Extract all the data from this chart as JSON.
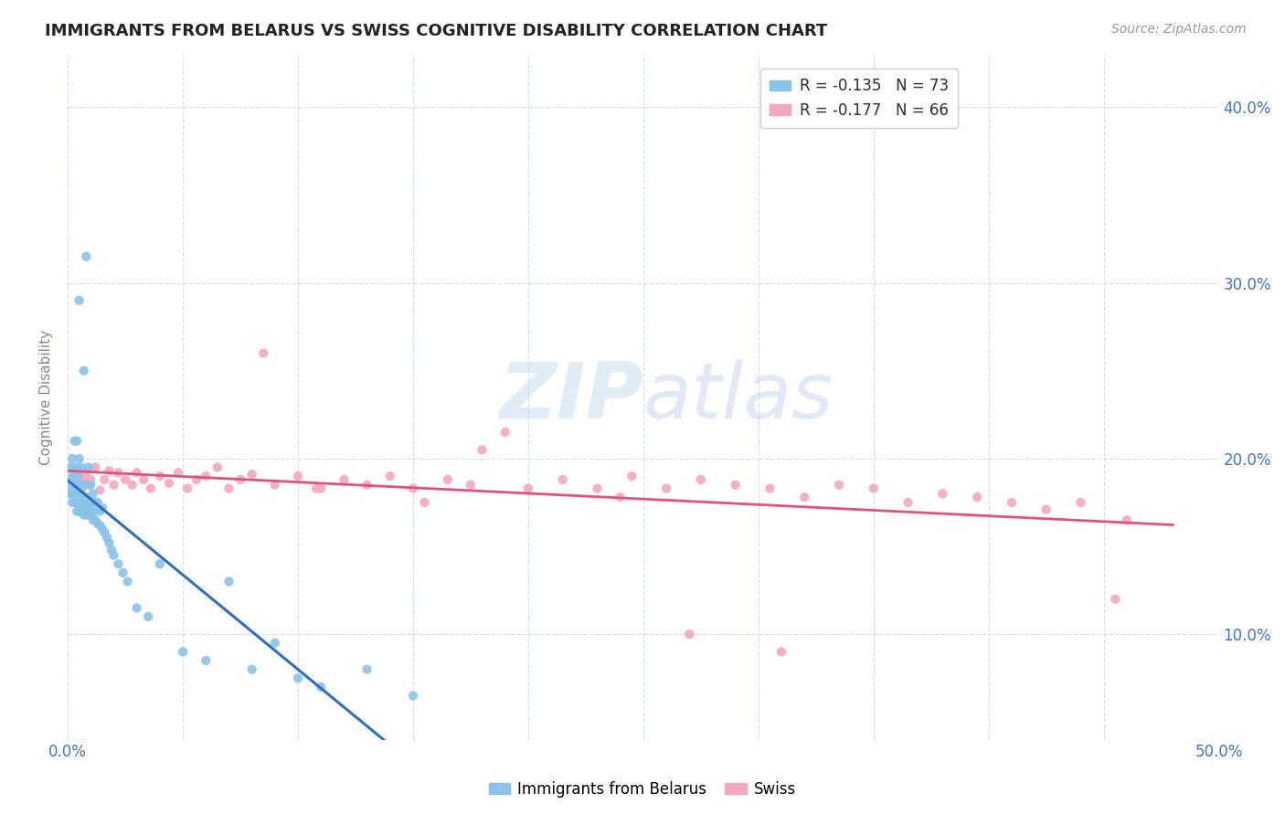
{
  "title": "IMMIGRANTS FROM BELARUS VS SWISS COGNITIVE DISABILITY CORRELATION CHART",
  "source": "Source: ZipAtlas.com",
  "ylabel": "Cognitive Disability",
  "x_min": 0.0,
  "x_max": 0.5,
  "y_min": 0.04,
  "y_max": 0.43,
  "legend_label1": "R = -0.135   N = 73",
  "legend_label2": "R = -0.177   N = 66",
  "legend_bottom_label1": "Immigrants from Belarus",
  "legend_bottom_label2": "Swiss",
  "color_blue": "#89c4e8",
  "color_pink": "#f4a8bc",
  "color_blue_line": "#3070b8",
  "color_pink_line": "#e05080",
  "blue_scatter_x": [
    0.001,
    0.001,
    0.001,
    0.002,
    0.002,
    0.002,
    0.002,
    0.003,
    0.003,
    0.003,
    0.003,
    0.003,
    0.004,
    0.004,
    0.004,
    0.004,
    0.004,
    0.004,
    0.005,
    0.005,
    0.005,
    0.005,
    0.005,
    0.006,
    0.006,
    0.006,
    0.006,
    0.007,
    0.007,
    0.007,
    0.007,
    0.008,
    0.008,
    0.008,
    0.008,
    0.009,
    0.009,
    0.009,
    0.01,
    0.01,
    0.01,
    0.01,
    0.011,
    0.011,
    0.011,
    0.012,
    0.012,
    0.013,
    0.013,
    0.014,
    0.014,
    0.015,
    0.015,
    0.016,
    0.017,
    0.018,
    0.019,
    0.02,
    0.022,
    0.024,
    0.026,
    0.03,
    0.035,
    0.04,
    0.05,
    0.06,
    0.07,
    0.08,
    0.09,
    0.1,
    0.11,
    0.13,
    0.15
  ],
  "blue_scatter_y": [
    0.185,
    0.195,
    0.18,
    0.175,
    0.18,
    0.19,
    0.2,
    0.175,
    0.18,
    0.185,
    0.195,
    0.21,
    0.17,
    0.175,
    0.18,
    0.19,
    0.195,
    0.21,
    0.17,
    0.175,
    0.185,
    0.2,
    0.29,
    0.17,
    0.175,
    0.18,
    0.195,
    0.168,
    0.175,
    0.185,
    0.25,
    0.168,
    0.172,
    0.178,
    0.315,
    0.168,
    0.172,
    0.195,
    0.168,
    0.17,
    0.175,
    0.185,
    0.165,
    0.17,
    0.18,
    0.165,
    0.175,
    0.163,
    0.175,
    0.162,
    0.17,
    0.16,
    0.172,
    0.158,
    0.155,
    0.152,
    0.148,
    0.145,
    0.14,
    0.135,
    0.13,
    0.115,
    0.11,
    0.14,
    0.09,
    0.085,
    0.13,
    0.08,
    0.095,
    0.075,
    0.07,
    0.08,
    0.065
  ],
  "pink_scatter_x": [
    0.002,
    0.003,
    0.004,
    0.005,
    0.006,
    0.007,
    0.008,
    0.009,
    0.01,
    0.012,
    0.014,
    0.016,
    0.018,
    0.02,
    0.022,
    0.025,
    0.028,
    0.03,
    0.033,
    0.036,
    0.04,
    0.044,
    0.048,
    0.052,
    0.056,
    0.06,
    0.065,
    0.07,
    0.075,
    0.08,
    0.085,
    0.09,
    0.1,
    0.11,
    0.12,
    0.13,
    0.14,
    0.15,
    0.165,
    0.175,
    0.19,
    0.2,
    0.215,
    0.23,
    0.245,
    0.26,
    0.275,
    0.29,
    0.305,
    0.32,
    0.335,
    0.35,
    0.365,
    0.38,
    0.395,
    0.41,
    0.425,
    0.44,
    0.455,
    0.46,
    0.18,
    0.27,
    0.31,
    0.155,
    0.24,
    0.108
  ],
  "pink_scatter_y": [
    0.188,
    0.192,
    0.185,
    0.19,
    0.183,
    0.188,
    0.192,
    0.185,
    0.188,
    0.195,
    0.182,
    0.188,
    0.193,
    0.185,
    0.192,
    0.188,
    0.185,
    0.192,
    0.188,
    0.183,
    0.19,
    0.186,
    0.192,
    0.183,
    0.188,
    0.19,
    0.195,
    0.183,
    0.188,
    0.191,
    0.26,
    0.185,
    0.19,
    0.183,
    0.188,
    0.185,
    0.19,
    0.183,
    0.188,
    0.185,
    0.215,
    0.183,
    0.188,
    0.183,
    0.19,
    0.183,
    0.188,
    0.185,
    0.183,
    0.178,
    0.185,
    0.183,
    0.175,
    0.18,
    0.178,
    0.175,
    0.171,
    0.175,
    0.12,
    0.165,
    0.205,
    0.1,
    0.09,
    0.175,
    0.178,
    0.183
  ]
}
